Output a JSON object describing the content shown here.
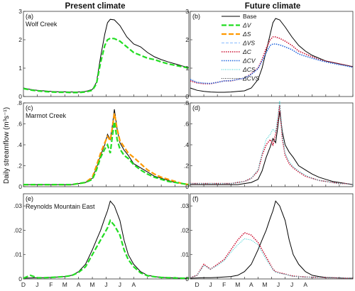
{
  "figure": {
    "col_titles": [
      "Present climate",
      "Future climate"
    ],
    "ylabel": "Daily streamflow (m³s⁻¹)",
    "month_labels": [
      "D",
      "J",
      "F",
      "M",
      "A",
      "M",
      "J",
      "J",
      "A"
    ]
  },
  "colors": {
    "Base": "#000000",
    "ΔV": "#22dd22",
    "ΔS": "#ff9900",
    "ΔVS": "#88bbff",
    "ΔC": "#cc1133",
    "ΔCV": "#2266dd",
    "ΔCS": "#22cccc",
    "ΔCVS": "#333333"
  },
  "legend": {
    "placement": "top-right of panel (b)",
    "entries": [
      "Base",
      "ΔV",
      "ΔS",
      "ΔVS",
      "ΔC",
      "ΔCV",
      "ΔCS",
      "ΔCVS"
    ]
  },
  "chart_data": [
    {
      "type": "line",
      "panel": "(a)",
      "site": "Wolf Creek",
      "climate": "Present climate",
      "ylim": [
        0,
        3
      ],
      "yticks": [
        0,
        1,
        2,
        3
      ],
      "xlim": [
        0,
        12
      ],
      "grid": false,
      "x": [
        0,
        0.5,
        1,
        1.5,
        2,
        2.5,
        3,
        3.5,
        4,
        4.5,
        5,
        5.3,
        5.6,
        5.9,
        6.1,
        6.3,
        6.6,
        7,
        7.5,
        8,
        8.5,
        9,
        9.5,
        10,
        10.5,
        11,
        11.5,
        12
      ],
      "series": [
        {
          "name": "Base",
          "values": [
            0.3,
            0.25,
            0.22,
            0.2,
            0.18,
            0.17,
            0.17,
            0.16,
            0.16,
            0.18,
            0.25,
            0.5,
            1.4,
            2.2,
            2.6,
            2.72,
            2.7,
            2.5,
            2.1,
            1.85,
            1.75,
            1.55,
            1.4,
            1.3,
            1.22,
            1.15,
            1.08,
            1.02
          ]
        },
        {
          "name": "ΔV",
          "values": [
            0.28,
            0.23,
            0.2,
            0.18,
            0.16,
            0.15,
            0.15,
            0.14,
            0.14,
            0.16,
            0.22,
            0.45,
            1.2,
            1.8,
            2.0,
            2.05,
            2.04,
            1.95,
            1.75,
            1.55,
            1.45,
            1.35,
            1.3,
            1.22,
            1.15,
            1.1,
            1.05,
            1.0
          ]
        }
      ]
    },
    {
      "type": "line",
      "panel": "(b)",
      "site": "",
      "climate": "Future climate",
      "ylim": [
        0,
        3
      ],
      "yticks": [
        0,
        1,
        2,
        3
      ],
      "xlim": [
        0,
        12
      ],
      "grid": false,
      "x": [
        0,
        0.5,
        1,
        1.5,
        2,
        2.5,
        3,
        3.5,
        4,
        4.5,
        5,
        5.3,
        5.6,
        5.9,
        6.1,
        6.3,
        6.6,
        7,
        7.5,
        8,
        8.5,
        9,
        9.5,
        10,
        10.5,
        11,
        11.5,
        12
      ],
      "series": [
        {
          "name": "Base",
          "values": [
            0.3,
            0.22,
            0.18,
            0.16,
            0.15,
            0.15,
            0.16,
            0.18,
            0.2,
            0.3,
            0.6,
            1.0,
            1.6,
            2.2,
            2.6,
            2.75,
            2.7,
            2.45,
            2.1,
            1.8,
            1.6,
            1.45,
            1.35,
            1.25,
            1.2,
            1.15,
            1.1,
            1.05
          ]
        },
        {
          "name": "ΔC",
          "values": [
            0.55,
            0.48,
            0.45,
            0.45,
            0.5,
            0.55,
            0.55,
            0.6,
            0.65,
            0.8,
            1.0,
            1.3,
            1.7,
            2.0,
            2.1,
            2.1,
            2.05,
            1.95,
            1.8,
            1.6,
            1.5,
            1.4,
            1.3,
            1.25,
            1.2,
            1.15,
            1.1,
            1.05
          ]
        },
        {
          "name": "ΔCV",
          "values": [
            0.6,
            0.5,
            0.47,
            0.46,
            0.5,
            0.55,
            0.56,
            0.6,
            0.65,
            0.78,
            0.98,
            1.25,
            1.55,
            1.8,
            1.85,
            1.85,
            1.82,
            1.75,
            1.65,
            1.5,
            1.42,
            1.35,
            1.28,
            1.22,
            1.17,
            1.12,
            1.08,
            1.03
          ]
        }
      ]
    },
    {
      "type": "line",
      "panel": "(c)",
      "site": "Marmot Creek",
      "climate": "Present climate",
      "ylim": [
        0,
        0.8
      ],
      "yticks": [
        0,
        0.2,
        0.4,
        0.6,
        0.8
      ],
      "xlim": [
        0,
        12
      ],
      "grid": false,
      "x": [
        0,
        0.5,
        1,
        1.5,
        2,
        2.5,
        3,
        3.5,
        4,
        4.5,
        5,
        5.3,
        5.6,
        5.9,
        6.1,
        6.3,
        6.45,
        6.6,
        6.8,
        7,
        7.3,
        7.6,
        8,
        8.5,
        9,
        9.5,
        10,
        10.5,
        11,
        11.5,
        12
      ],
      "series": [
        {
          "name": "Base",
          "values": [
            0.02,
            0.02,
            0.02,
            0.02,
            0.02,
            0.02,
            0.02,
            0.02,
            0.03,
            0.04,
            0.08,
            0.18,
            0.3,
            0.4,
            0.5,
            0.45,
            0.58,
            0.74,
            0.55,
            0.42,
            0.35,
            0.3,
            0.22,
            0.18,
            0.14,
            0.1,
            0.08,
            0.06,
            0.04,
            0.03,
            0.02
          ]
        },
        {
          "name": "ΔS",
          "values": [
            0.02,
            0.02,
            0.02,
            0.02,
            0.02,
            0.02,
            0.02,
            0.02,
            0.03,
            0.04,
            0.09,
            0.2,
            0.32,
            0.42,
            0.48,
            0.44,
            0.56,
            0.7,
            0.55,
            0.44,
            0.38,
            0.32,
            0.28,
            0.22,
            0.16,
            0.12,
            0.09,
            0.07,
            0.05,
            0.03,
            0.02
          ]
        },
        {
          "name": "ΔV",
          "values": [
            0.02,
            0.02,
            0.02,
            0.02,
            0.02,
            0.02,
            0.02,
            0.02,
            0.03,
            0.04,
            0.07,
            0.16,
            0.28,
            0.36,
            0.4,
            0.32,
            0.48,
            0.62,
            0.45,
            0.36,
            0.3,
            0.27,
            0.21,
            0.16,
            0.12,
            0.09,
            0.07,
            0.05,
            0.04,
            0.03,
            0.02
          ]
        }
      ]
    },
    {
      "type": "line",
      "panel": "(d)",
      "site": "",
      "climate": "Future climate",
      "ylim": [
        0,
        0.8
      ],
      "yticks": [
        0,
        0.2,
        0.4,
        0.6,
        0.8
      ],
      "xlim": [
        0,
        12
      ],
      "grid": false,
      "x": [
        0,
        0.5,
        1,
        1.5,
        2,
        2.5,
        3,
        3.5,
        4,
        4.5,
        5,
        5.3,
        5.6,
        5.9,
        6.1,
        6.3,
        6.45,
        6.6,
        6.8,
        7,
        7.3,
        7.6,
        8,
        8.5,
        9,
        9.5,
        10,
        10.5,
        11,
        11.5,
        12
      ],
      "series": [
        {
          "name": "Base",
          "values": [
            0.02,
            0.02,
            0.02,
            0.02,
            0.02,
            0.02,
            0.02,
            0.02,
            0.03,
            0.04,
            0.07,
            0.15,
            0.28,
            0.38,
            0.46,
            0.42,
            0.56,
            0.72,
            0.52,
            0.4,
            0.33,
            0.28,
            0.2,
            0.16,
            0.12,
            0.09,
            0.07,
            0.05,
            0.04,
            0.03,
            0.02
          ]
        },
        {
          "name": "ΔC",
          "values": [
            0.03,
            0.03,
            0.03,
            0.03,
            0.03,
            0.03,
            0.03,
            0.04,
            0.05,
            0.08,
            0.15,
            0.3,
            0.4,
            0.45,
            0.4,
            0.5,
            0.62,
            0.78,
            0.45,
            0.3,
            0.22,
            0.18,
            0.14,
            0.1,
            0.08,
            0.06,
            0.05,
            0.04,
            0.03,
            0.03,
            0.02
          ]
        },
        {
          "name": "ΔCS",
          "values": [
            0.03,
            0.03,
            0.03,
            0.03,
            0.03,
            0.03,
            0.03,
            0.04,
            0.05,
            0.08,
            0.16,
            0.32,
            0.45,
            0.5,
            0.55,
            0.52,
            0.66,
            0.82,
            0.48,
            0.32,
            0.24,
            0.19,
            0.15,
            0.11,
            0.08,
            0.06,
            0.05,
            0.04,
            0.03,
            0.03,
            0.02
          ]
        }
      ]
    },
    {
      "type": "line",
      "panel": "(e)",
      "site": "Reynolds Mountain East",
      "climate": "Present climate",
      "ylim": [
        0,
        0.035
      ],
      "yticks": [
        0,
        0.01,
        0.02,
        0.03
      ],
      "xlim": [
        0,
        12
      ],
      "grid": false,
      "x": [
        0,
        0.5,
        1,
        1.5,
        2,
        2.5,
        3,
        3.5,
        4,
        4.5,
        5,
        5.3,
        5.6,
        5.9,
        6.1,
        6.3,
        6.6,
        7,
        7.3,
        7.6,
        8,
        8.5,
        9,
        9.5,
        10,
        10.5,
        11,
        11.5,
        12
      ],
      "series": [
        {
          "name": "Base",
          "values": [
            0.0003,
            0.0004,
            0.0005,
            0.0005,
            0.0006,
            0.0008,
            0.001,
            0.0015,
            0.003,
            0.006,
            0.012,
            0.016,
            0.02,
            0.025,
            0.028,
            0.032,
            0.03,
            0.024,
            0.016,
            0.01,
            0.006,
            0.003,
            0.0015,
            0.001,
            0.0006,
            0.0005,
            0.0004,
            0.0003,
            0.0003
          ]
        },
        {
          "name": "ΔV",
          "values": [
            0.0003,
            0.0015,
            0.0005,
            0.0005,
            0.0006,
            0.0008,
            0.001,
            0.0014,
            0.0027,
            0.005,
            0.01,
            0.013,
            0.016,
            0.019,
            0.021,
            0.024,
            0.022,
            0.018,
            0.012,
            0.008,
            0.005,
            0.0025,
            0.0013,
            0.0009,
            0.0006,
            0.0005,
            0.0004,
            0.0003,
            0.0003
          ]
        }
      ]
    },
    {
      "type": "line",
      "panel": "(f)",
      "site": "",
      "climate": "Future climate",
      "ylim": [
        0,
        0.035
      ],
      "yticks": [
        0,
        0.01,
        0.02,
        0.03
      ],
      "xlim": [
        0,
        12
      ],
      "grid": false,
      "x": [
        0,
        0.5,
        1,
        1.5,
        2,
        2.5,
        3,
        3.5,
        4,
        4.5,
        5,
        5.3,
        5.6,
        5.9,
        6.1,
        6.3,
        6.6,
        7,
        7.3,
        7.6,
        8,
        8.5,
        9,
        9.5,
        10,
        10.5,
        11,
        11.5,
        12
      ],
      "series": [
        {
          "name": "Base",
          "values": [
            0.0003,
            0.0004,
            0.0005,
            0.0005,
            0.0006,
            0.0008,
            0.001,
            0.0015,
            0.003,
            0.006,
            0.012,
            0.016,
            0.02,
            0.025,
            0.028,
            0.032,
            0.03,
            0.024,
            0.016,
            0.01,
            0.006,
            0.003,
            0.0015,
            0.001,
            0.0006,
            0.0005,
            0.0004,
            0.0003,
            0.0003
          ]
        },
        {
          "name": "ΔC",
          "values": [
            0.0005,
            0.0015,
            0.006,
            0.004,
            0.006,
            0.008,
            0.012,
            0.016,
            0.019,
            0.018,
            0.015,
            0.012,
            0.009,
            0.006,
            0.004,
            0.003,
            0.0025,
            0.002,
            0.0015,
            0.0012,
            0.001,
            0.0008,
            0.0007,
            0.0006,
            0.0005,
            0.0005,
            0.0004,
            0.0003,
            0.0003
          ]
        },
        {
          "name": "ΔCS",
          "values": [
            0.0005,
            0.0015,
            0.0055,
            0.004,
            0.0055,
            0.0075,
            0.011,
            0.014,
            0.0165,
            0.016,
            0.014,
            0.011,
            0.008,
            0.0055,
            0.0038,
            0.0028,
            0.0023,
            0.0019,
            0.0014,
            0.0011,
            0.0009,
            0.0008,
            0.0007,
            0.0006,
            0.0005,
            0.0005,
            0.0004,
            0.0003,
            0.0003
          ]
        }
      ]
    }
  ]
}
